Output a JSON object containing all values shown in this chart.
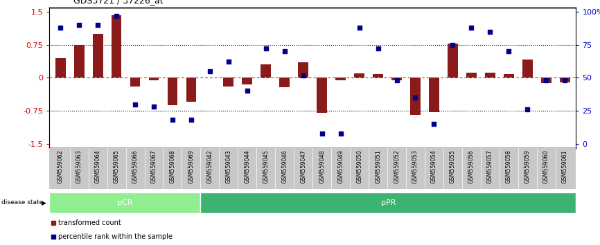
{
  "title": "GDS3721 / 37226_at",
  "samples": [
    "GSM559062",
    "GSM559063",
    "GSM559064",
    "GSM559065",
    "GSM559066",
    "GSM559067",
    "GSM559068",
    "GSM559069",
    "GSM559042",
    "GSM559043",
    "GSM559044",
    "GSM559045",
    "GSM559046",
    "GSM559047",
    "GSM559048",
    "GSM559049",
    "GSM559050",
    "GSM559051",
    "GSM559052",
    "GSM559053",
    "GSM559054",
    "GSM559055",
    "GSM559056",
    "GSM559057",
    "GSM559058",
    "GSM559059",
    "GSM559060",
    "GSM559061"
  ],
  "bar_values": [
    0.45,
    0.75,
    1.0,
    1.42,
    -0.2,
    -0.05,
    -0.62,
    -0.55,
    0.0,
    -0.2,
    -0.15,
    0.3,
    -0.22,
    0.35,
    -0.8,
    -0.05,
    0.1,
    0.08,
    -0.05,
    -0.85,
    -0.78,
    0.78,
    0.12,
    0.12,
    0.08,
    0.42,
    -0.12,
    -0.1
  ],
  "percentile_values": [
    88,
    90,
    90,
    97,
    30,
    28,
    18,
    18,
    55,
    62,
    40,
    72,
    70,
    52,
    8,
    8,
    88,
    72,
    48,
    35,
    15,
    75,
    88,
    85,
    70,
    26,
    48,
    48
  ],
  "pCR_count": 8,
  "pPR_count": 20,
  "bar_color": "#8B1A1A",
  "dot_color": "#00008B",
  "pCR_color": "#90EE90",
  "pPR_color": "#3CB371",
  "xtick_bg_color": "#C8C8C8",
  "label_color_red": "#CC0000",
  "label_color_blue": "#0000CC",
  "ylim": [
    -1.6,
    1.6
  ],
  "y_ticks_left": [
    -1.5,
    -0.75,
    0.0,
    0.75,
    1.5
  ],
  "y_ticks_right_pct": [
    0,
    25,
    50,
    75,
    100
  ],
  "ytick_labels_right": [
    "0",
    "25",
    "50",
    "75",
    "100%"
  ],
  "hlines_dotted": [
    -0.75,
    0.75
  ],
  "hline_zero_red": 0.0
}
